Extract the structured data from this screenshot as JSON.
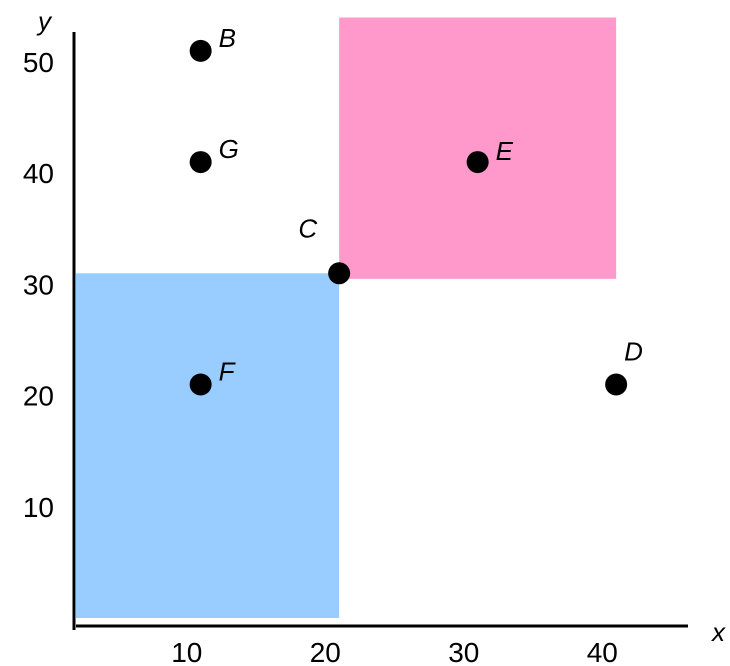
{
  "chart_data": {
    "type": "scatter",
    "xlabel": "x",
    "ylabel": "y",
    "xlim": [
      2,
      45
    ],
    "ylim": [
      0,
      55
    ],
    "xticks": [
      10,
      20,
      30,
      40
    ],
    "yticks": [
      10,
      20,
      30,
      40,
      50
    ],
    "grid": false,
    "points": [
      {
        "label": "B",
        "x": 11,
        "y": 51
      },
      {
        "label": "G",
        "x": 11,
        "y": 41
      },
      {
        "label": "E",
        "x": 31,
        "y": 41
      },
      {
        "label": "C",
        "x": 21,
        "y": 31
      },
      {
        "label": "F",
        "x": 11,
        "y": 21
      },
      {
        "label": "D",
        "x": 41,
        "y": 21
      }
    ],
    "regions": [
      {
        "x0": 2,
        "x1": 21,
        "y0": 0,
        "y1": 31,
        "color": "#99ccff"
      },
      {
        "x0": 21,
        "x1": 41,
        "y0": 30.5,
        "y1": 54,
        "color": "#ff99cc"
      }
    ]
  }
}
